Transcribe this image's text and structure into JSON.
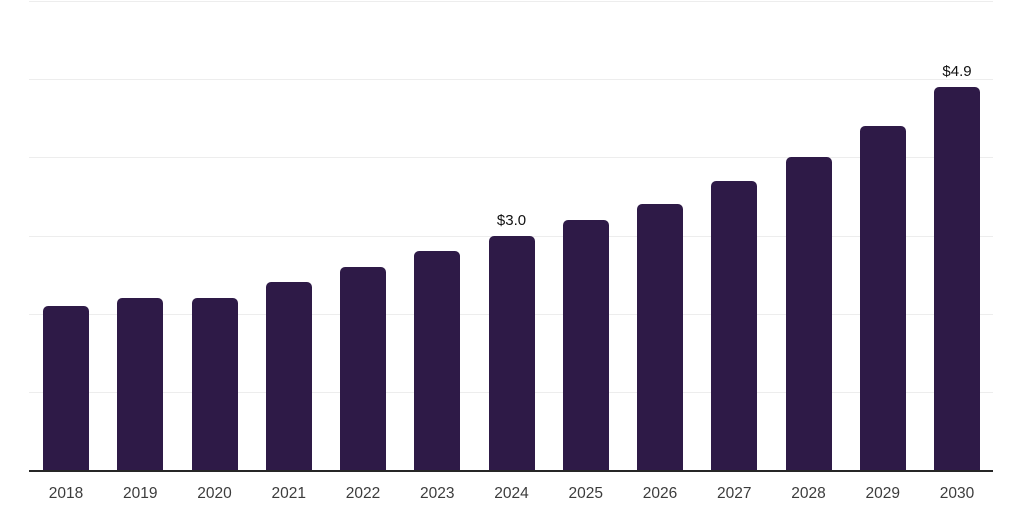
{
  "chart_data": {
    "type": "bar",
    "title": "",
    "xlabel": "",
    "ylabel": "",
    "categories": [
      "2018",
      "2019",
      "2020",
      "2021",
      "2022",
      "2023",
      "2024",
      "2025",
      "2026",
      "2027",
      "2028",
      "2029",
      "2030"
    ],
    "values": [
      2.1,
      2.2,
      2.2,
      2.4,
      2.6,
      2.8,
      3.0,
      3.2,
      3.4,
      3.7,
      4.0,
      4.4,
      4.9
    ],
    "data_labels": {
      "2024": "$3.0",
      "2030": "$4.9"
    },
    "ylim": [
      0,
      6
    ],
    "gridline_step": 1,
    "grid": true,
    "legend": "none",
    "colors": {
      "bar": "#2e1a47",
      "axis": "#262626",
      "gridline": "#ededed",
      "data_label": "#111111",
      "tick_label": "#3c3c3c",
      "background": "#ffffff"
    }
  }
}
